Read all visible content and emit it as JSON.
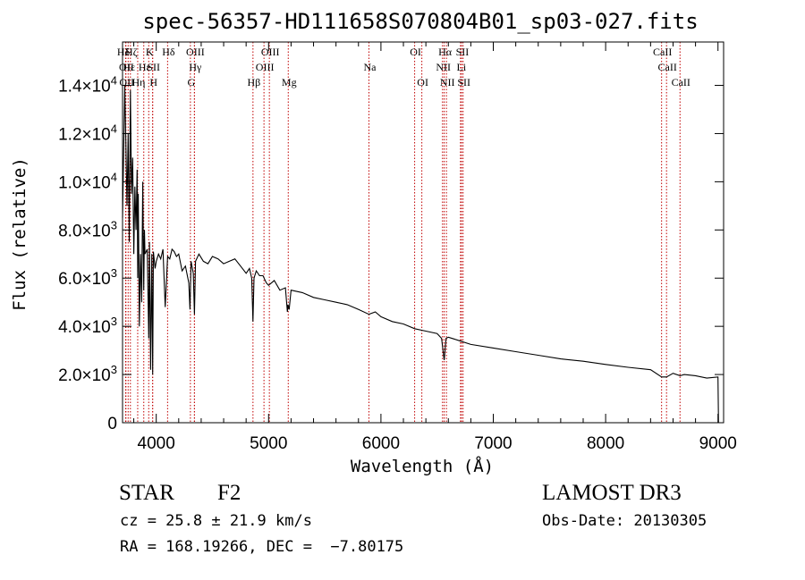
{
  "chart_data": {
    "type": "line",
    "title": "spec-56357-HD111658S070804B01_sp03-027.fits",
    "xlabel": "Wavelength (Å)",
    "ylabel": "Flux (relative)",
    "xlim": [
      3700,
      9050
    ],
    "ylim": [
      0,
      15800
    ],
    "x_ticks": [
      4000,
      5000,
      6000,
      7000,
      8000,
      9000
    ],
    "y_ticks": [
      {
        "value": 0,
        "mant": "0",
        "exp": ""
      },
      {
        "value": 2000,
        "mant": "2.0×10",
        "exp": "3"
      },
      {
        "value": 4000,
        "mant": "4.0×10",
        "exp": "3"
      },
      {
        "value": 6000,
        "mant": "6.0×10",
        "exp": "3"
      },
      {
        "value": 8000,
        "mant": "8.0×10",
        "exp": "3"
      },
      {
        "value": 10000,
        "mant": "1.0×10",
        "exp": "4"
      },
      {
        "value": 12000,
        "mant": "1.2×10",
        "exp": "4"
      },
      {
        "value": 14000,
        "mant": "1.4×10",
        "exp": "4"
      }
    ],
    "series": [
      {
        "name": "flux",
        "x": [
          3700,
          3720,
          3740,
          3750,
          3760,
          3770,
          3780,
          3790,
          3800,
          3810,
          3820,
          3830,
          3835,
          3840,
          3850,
          3860,
          3870,
          3880,
          3889,
          3895,
          3900,
          3920,
          3933,
          3940,
          3950,
          3960,
          3968,
          3975,
          3990,
          4000,
          4020,
          4040,
          4060,
          4080,
          4101,
          4120,
          4140,
          4160,
          4180,
          4200,
          4230,
          4260,
          4290,
          4300,
          4310,
          4330,
          4340,
          4350,
          4380,
          4420,
          4460,
          4500,
          4550,
          4600,
          4650,
          4700,
          4750,
          4800,
          4830,
          4850,
          4861,
          4870,
          4890,
          4920,
          4950,
          4980,
          5000,
          5050,
          5100,
          5150,
          5167,
          5172,
          5183,
          5200,
          5300,
          5400,
          5500,
          5600,
          5700,
          5800,
          5893,
          5950,
          6000,
          6100,
          6200,
          6300,
          6400,
          6500,
          6540,
          6563,
          6580,
          6600,
          6700,
          6800,
          7000,
          7200,
          7400,
          7600,
          7800,
          8000,
          8200,
          8400,
          8498,
          8542,
          8600,
          8662,
          8700,
          8800,
          8900,
          9000,
          9005
        ],
        "y": [
          8500,
          14000,
          9000,
          12000,
          7500,
          13800,
          9500,
          11000,
          7000,
          9800,
          8000,
          10500,
          6000,
          9500,
          4000,
          7000,
          5000,
          10000,
          5500,
          8000,
          7000,
          7200,
          3500,
          7500,
          2200,
          7000,
          2000,
          7100,
          6400,
          6700,
          7000,
          6800,
          7200,
          4800,
          6900,
          6800,
          7200,
          7100,
          6900,
          7000,
          6300,
          6500,
          5800,
          4700,
          6700,
          6200,
          4500,
          6700,
          7000,
          6700,
          6600,
          6900,
          6800,
          6600,
          6700,
          6800,
          6500,
          6200,
          6400,
          6000,
          4200,
          6000,
          6300,
          6100,
          6100,
          5800,
          5700,
          5900,
          5500,
          5600,
          4600,
          4900,
          4700,
          5500,
          5400,
          5200,
          5100,
          5000,
          4900,
          4700,
          4500,
          4600,
          4400,
          4200,
          4100,
          3900,
          3800,
          3700,
          3500,
          2600,
          3500,
          3550,
          3400,
          3250,
          3100,
          2950,
          2800,
          2650,
          2550,
          2420,
          2300,
          2200,
          1900,
          1900,
          2050,
          1950,
          2000,
          1950,
          1850,
          1900,
          0
        ]
      }
    ],
    "lines": [
      {
        "name": "Hδ",
        "w": 3700,
        "row": 0
      },
      {
        "name": "OII",
        "w": 3727,
        "row": 1
      },
      {
        "name": "OII",
        "w": 3730,
        "row": 2
      },
      {
        "name": "Hε",
        "w": 3750,
        "row": 1
      },
      {
        "name": "Hη",
        "w": 3835,
        "row": 2
      },
      {
        "name": "Hζ",
        "w": 3770,
        "row": 0
      },
      {
        "name": "Hε",
        "w": 3889,
        "row": 1
      },
      {
        "name": "K",
        "w": 3933,
        "row": 0
      },
      {
        "name": "SII",
        "w": 3968,
        "row": 1
      },
      {
        "name": "H",
        "w": 3968,
        "row": 2
      },
      {
        "name": "Hδ",
        "w": 4101,
        "row": 0
      },
      {
        "name": "OIII",
        "w": 4340,
        "row": 0
      },
      {
        "name": "Hγ",
        "w": 4340,
        "row": 1
      },
      {
        "name": "G",
        "w": 4304,
        "row": 2
      },
      {
        "name": "Hβ",
        "w": 4861,
        "row": 2
      },
      {
        "name": "OIII",
        "w": 5007,
        "row": 0
      },
      {
        "name": "OIII",
        "w": 4959,
        "row": 1
      },
      {
        "name": "Mg",
        "w": 5175,
        "row": 2
      },
      {
        "name": "Na",
        "w": 5893,
        "row": 1
      },
      {
        "name": "OI",
        "w": 6300,
        "row": 0
      },
      {
        "name": "OI",
        "w": 6364,
        "row": 2
      },
      {
        "name": "Hα",
        "w": 6563,
        "row": 0
      },
      {
        "name": "NII",
        "w": 6548,
        "row": 1
      },
      {
        "name": "NII",
        "w": 6583,
        "row": 2
      },
      {
        "name": "SII",
        "w": 6717,
        "row": 0
      },
      {
        "name": "Li",
        "w": 6708,
        "row": 1
      },
      {
        "name": "SII",
        "w": 6731,
        "row": 2
      },
      {
        "name": "CaII",
        "w": 8498,
        "row": 0
      },
      {
        "name": "CaII",
        "w": 8542,
        "row": 1
      },
      {
        "name": "CaII",
        "w": 8662,
        "row": 2
      }
    ]
  },
  "info": {
    "class_label": "STAR",
    "subclass": "F2",
    "cz": "cz = 25.8 ± 21.9 km/s",
    "radec": "RA = 168.19266, DEC =  −7.80175",
    "survey": "LAMOST DR3",
    "obs_date": "Obs-Date: 20130305"
  }
}
